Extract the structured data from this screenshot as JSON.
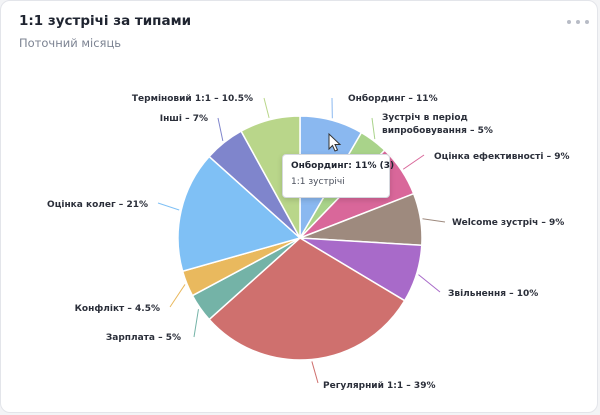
{
  "header": {
    "title": "1:1 зустрічі за типами",
    "subtitle": "Поточний місяць",
    "menu_icon": "more-horizontal-icon"
  },
  "tooltip": {
    "title": "Онбординг: 11% (3)",
    "subtitle": "1:1 зустрічі"
  },
  "chart_data": {
    "type": "pie",
    "slices": [
      {
        "name": "Онбординг",
        "value": 11,
        "label": "Онбординг – 11%",
        "color": "#8ab8f0"
      },
      {
        "name": "Зустріч в період випробовування",
        "value": 5,
        "label": [
          "Зустріч в період",
          "випробовування – 5%"
        ],
        "color": "#a9d38a"
      },
      {
        "name": "Оцінка ефективності",
        "value": 9,
        "label": "Оцінка ефективності – 9%",
        "color": "#d9679a"
      },
      {
        "name": "Welcome зустріч",
        "value": 9,
        "label": "Welcome зустріч – 9%",
        "color": "#9e8a7e"
      },
      {
        "name": "Звільнення",
        "value": 10,
        "label": "Звільнення – 10%",
        "color": "#a86ac9"
      },
      {
        "name": "Регулярний 1:1",
        "value": 39,
        "label": "Регулярний 1:1 – 39%",
        "color": "#cf706e"
      },
      {
        "name": "Зарплата",
        "value": 5,
        "label": "Зарплата – 5%",
        "color": "#74b3a7"
      },
      {
        "name": "Конфлікт",
        "value": 4.5,
        "label": "Конфлікт – 4.5%",
        "color": "#e9b95e"
      },
      {
        "name": "Оцінка колег",
        "value": 21,
        "label": "Оцінка колег – 21%",
        "color": "#7fc0f5"
      },
      {
        "name": "Інші",
        "value": 7,
        "label": "Інші – 7%",
        "color": "#7f85cc"
      },
      {
        "name": "Терміновий 1:1",
        "value": 10.5,
        "label": "Терміновий 1:1 – 10.5%",
        "color": "#b9d68a"
      }
    ]
  }
}
